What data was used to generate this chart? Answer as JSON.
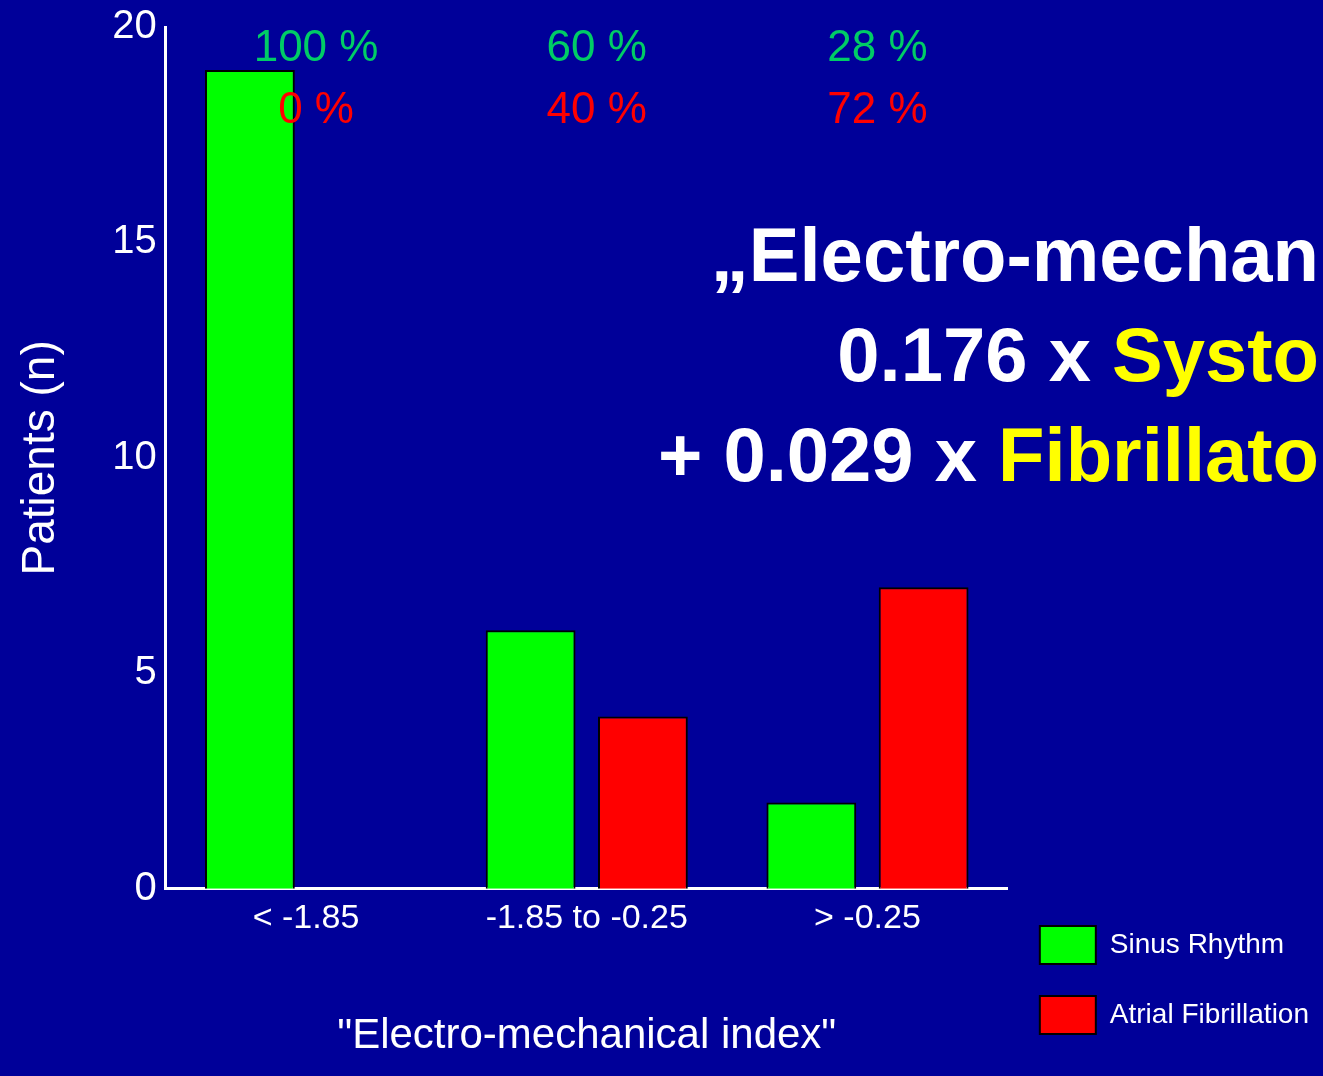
{
  "chart_data": {
    "type": "bar",
    "xlabel": "\"Electro-mechanical index\"",
    "ylabel": "Patients (n)",
    "categories": [
      "< -1.85",
      "-1.85 to -0.25",
      "> -0.25"
    ],
    "series": [
      {
        "name": "Sinus Rhythm",
        "color": "#00ff00",
        "values": [
          19,
          6,
          2
        ]
      },
      {
        "name": "Atrial Fibrillation",
        "color": "#ff0000",
        "values": [
          0,
          4,
          7
        ]
      }
    ],
    "ylim": [
      0,
      20
    ],
    "yticks": [
      0,
      5,
      10,
      15,
      20
    ],
    "grid": false,
    "legend": "bottom right",
    "annotations": [
      "100 %",
      "60 %",
      "28 %",
      "0 %",
      "40 %",
      "72 %",
      "„Electro-mechan",
      "0.176 x ",
      "Systo",
      "+ 0.029 x ",
      "Fibrillato"
    ]
  }
}
